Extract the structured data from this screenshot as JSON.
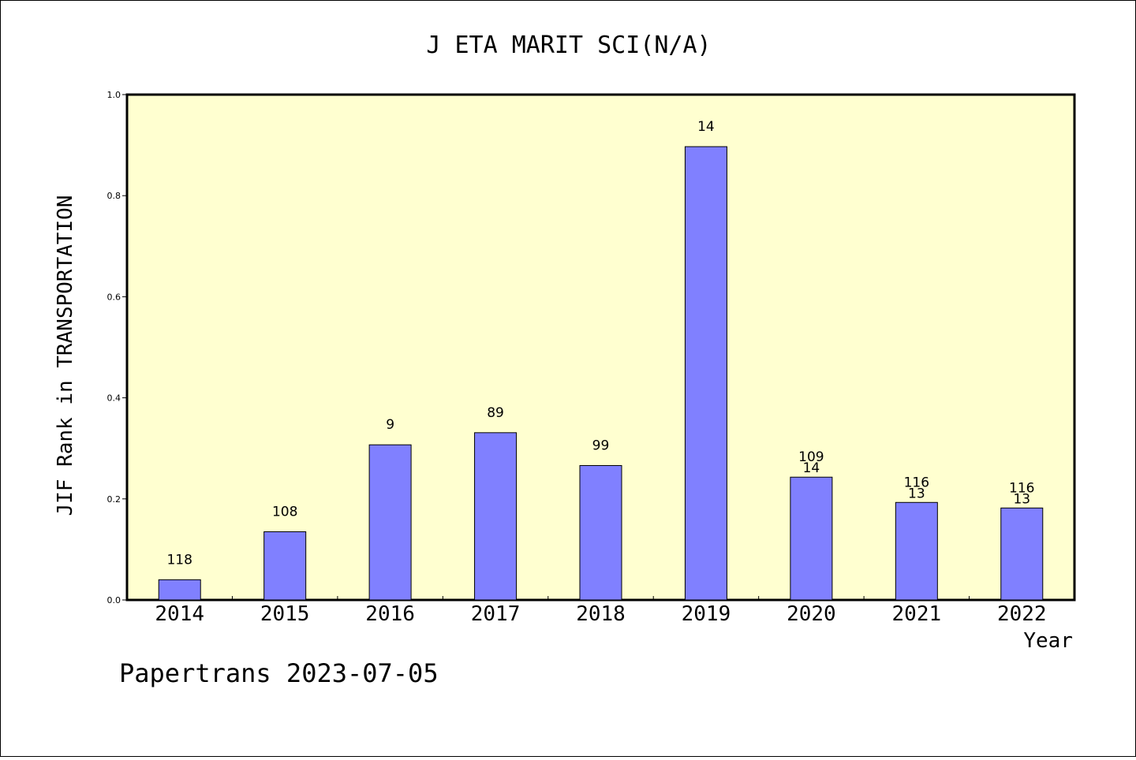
{
  "chart_data": {
    "type": "bar",
    "title": "J ETA MARIT SCI(N/A)",
    "xlabel": "Year",
    "ylabel": "JIF Rank in TRANSPORTATION",
    "ylim": [
      0,
      1.0
    ],
    "yticks": [
      "0.0",
      "0.2",
      "0.4",
      "0.6",
      "0.8",
      "1.0"
    ],
    "categories": [
      "2014",
      "2015",
      "2016",
      "2017",
      "2018",
      "2019",
      "2020",
      "2021",
      "2022"
    ],
    "values": [
      0.04,
      0.135,
      0.307,
      0.331,
      0.266,
      0.897,
      0.243,
      0.193,
      0.182
    ],
    "labels": [
      [
        "118"
      ],
      [
        "108"
      ],
      [
        "9"
      ],
      [
        "89"
      ],
      [
        "99"
      ],
      [
        "14"
      ],
      [
        "109",
        "14"
      ],
      [
        "116",
        "13"
      ],
      [
        "116",
        "13"
      ]
    ],
    "grid": false,
    "colors": {
      "plot_background": "#FFFFD0",
      "bar_fill": "#8080FF",
      "bar_stroke": "#000000"
    }
  },
  "footer": {
    "text": "Papertrans 2023-07-05"
  }
}
